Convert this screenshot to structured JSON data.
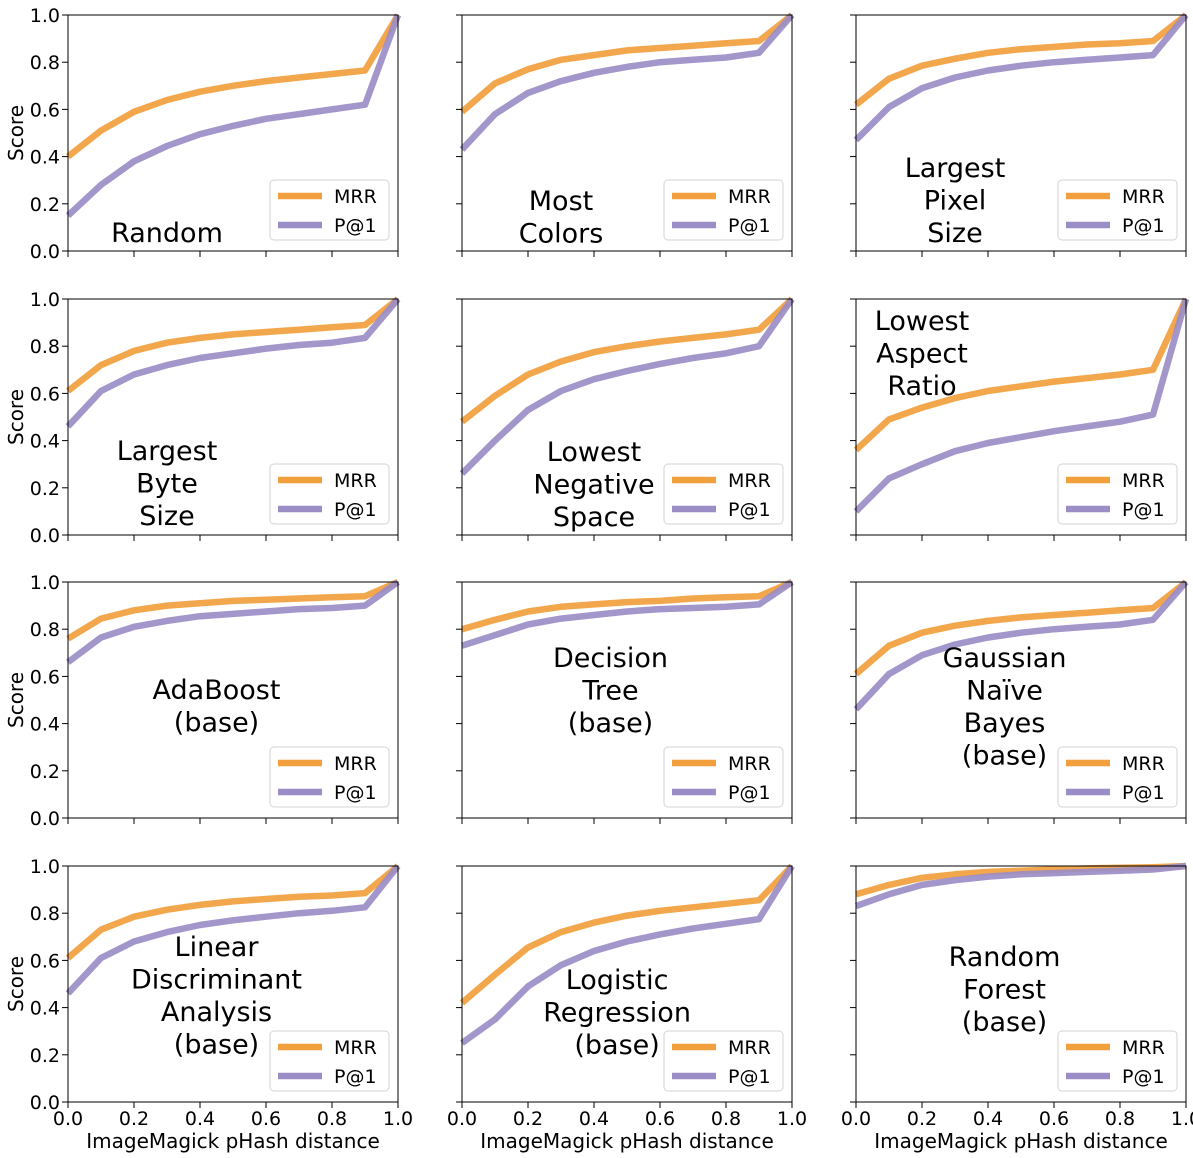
{
  "colors": {
    "mrr": "#f2a03d",
    "p1": "#9b8dc6",
    "mrr_dark": "#e08a2e",
    "p1_dark": "#8a7fba"
  },
  "shared": {
    "xlabel": "ImageMagick pHash distance",
    "ylabel": "Score",
    "xlim": [
      0.0,
      1.0
    ],
    "ylim": [
      0.0,
      1.0
    ],
    "xticks": [
      "0.0",
      "0.2",
      "0.4",
      "0.6",
      "0.8",
      "1.0"
    ],
    "yticks": [
      "0.0",
      "0.2",
      "0.4",
      "0.6",
      "0.8",
      "1.0"
    ],
    "legend": [
      "MRR",
      "P@1"
    ],
    "legend_position": "lower-right",
    "grid": false
  },
  "chart_data": [
    {
      "type": "line",
      "title_lines": [
        "Random"
      ],
      "x": [
        0.0,
        0.1,
        0.2,
        0.3,
        0.4,
        0.5,
        0.6,
        0.7,
        0.8,
        0.9,
        1.0
      ],
      "series": [
        {
          "name": "MRR",
          "values": [
            0.4,
            0.51,
            0.59,
            0.64,
            0.675,
            0.7,
            0.72,
            0.735,
            0.75,
            0.765,
            1.0
          ]
        },
        {
          "name": "P@1",
          "values": [
            0.15,
            0.28,
            0.38,
            0.445,
            0.495,
            0.53,
            0.56,
            0.58,
            0.6,
            0.62,
            1.0
          ]
        }
      ]
    },
    {
      "type": "line",
      "title_lines": [
        "Most",
        "Colors"
      ],
      "x": [
        0.0,
        0.1,
        0.2,
        0.3,
        0.4,
        0.5,
        0.6,
        0.7,
        0.8,
        0.9,
        1.0
      ],
      "series": [
        {
          "name": "MRR",
          "values": [
            0.59,
            0.71,
            0.77,
            0.81,
            0.83,
            0.85,
            0.86,
            0.87,
            0.88,
            0.89,
            1.0
          ]
        },
        {
          "name": "P@1",
          "values": [
            0.43,
            0.58,
            0.67,
            0.72,
            0.755,
            0.78,
            0.8,
            0.81,
            0.82,
            0.84,
            1.0
          ]
        }
      ]
    },
    {
      "type": "line",
      "title_lines": [
        "Largest",
        "Pixel",
        "Size"
      ],
      "x": [
        0.0,
        0.1,
        0.2,
        0.3,
        0.4,
        0.5,
        0.6,
        0.7,
        0.8,
        0.9,
        1.0
      ],
      "series": [
        {
          "name": "MRR",
          "values": [
            0.62,
            0.73,
            0.785,
            0.815,
            0.84,
            0.855,
            0.865,
            0.875,
            0.88,
            0.89,
            1.0
          ]
        },
        {
          "name": "P@1",
          "values": [
            0.47,
            0.61,
            0.69,
            0.735,
            0.765,
            0.785,
            0.8,
            0.81,
            0.82,
            0.83,
            1.0
          ]
        }
      ]
    },
    {
      "type": "line",
      "title_lines": [
        "Largest",
        "Byte",
        "Size"
      ],
      "x": [
        0.0,
        0.1,
        0.2,
        0.3,
        0.4,
        0.5,
        0.6,
        0.7,
        0.8,
        0.9,
        1.0
      ],
      "series": [
        {
          "name": "MRR",
          "values": [
            0.61,
            0.72,
            0.78,
            0.815,
            0.835,
            0.85,
            0.86,
            0.87,
            0.88,
            0.89,
            1.0
          ]
        },
        {
          "name": "P@1",
          "values": [
            0.46,
            0.61,
            0.68,
            0.72,
            0.75,
            0.77,
            0.79,
            0.805,
            0.815,
            0.835,
            1.0
          ]
        }
      ]
    },
    {
      "type": "line",
      "title_lines": [
        "Lowest",
        "Negative",
        "Space"
      ],
      "x": [
        0.0,
        0.1,
        0.2,
        0.3,
        0.4,
        0.5,
        0.6,
        0.7,
        0.8,
        0.9,
        1.0
      ],
      "series": [
        {
          "name": "MRR",
          "values": [
            0.48,
            0.59,
            0.68,
            0.735,
            0.775,
            0.8,
            0.82,
            0.835,
            0.85,
            0.87,
            1.0
          ]
        },
        {
          "name": "P@1",
          "values": [
            0.26,
            0.4,
            0.53,
            0.61,
            0.66,
            0.695,
            0.725,
            0.75,
            0.77,
            0.8,
            1.0
          ]
        }
      ]
    },
    {
      "type": "line",
      "title_lines": [
        "Lowest",
        "Aspect",
        "Ratio"
      ],
      "x": [
        0.0,
        0.1,
        0.2,
        0.3,
        0.4,
        0.5,
        0.6,
        0.7,
        0.8,
        0.9,
        1.0
      ],
      "series": [
        {
          "name": "MRR",
          "values": [
            0.36,
            0.49,
            0.54,
            0.58,
            0.61,
            0.63,
            0.65,
            0.665,
            0.68,
            0.7,
            1.0
          ]
        },
        {
          "name": "P@1",
          "values": [
            0.1,
            0.24,
            0.3,
            0.355,
            0.39,
            0.415,
            0.44,
            0.46,
            0.48,
            0.51,
            1.0
          ]
        }
      ]
    },
    {
      "type": "line",
      "title_lines": [
        "AdaBoost",
        "(base)"
      ],
      "x": [
        0.0,
        0.1,
        0.2,
        0.3,
        0.4,
        0.5,
        0.6,
        0.7,
        0.8,
        0.9,
        1.0
      ],
      "series": [
        {
          "name": "MRR",
          "values": [
            0.76,
            0.845,
            0.88,
            0.9,
            0.91,
            0.92,
            0.925,
            0.93,
            0.935,
            0.94,
            1.0
          ]
        },
        {
          "name": "P@1",
          "values": [
            0.66,
            0.765,
            0.81,
            0.835,
            0.855,
            0.865,
            0.875,
            0.885,
            0.89,
            0.9,
            1.0
          ]
        }
      ]
    },
    {
      "type": "line",
      "title_lines": [
        "Decision",
        "Tree",
        "(base)"
      ],
      "x": [
        0.0,
        0.1,
        0.2,
        0.3,
        0.4,
        0.5,
        0.6,
        0.7,
        0.8,
        0.9,
        1.0
      ],
      "series": [
        {
          "name": "MRR",
          "values": [
            0.8,
            0.84,
            0.875,
            0.895,
            0.905,
            0.915,
            0.92,
            0.93,
            0.935,
            0.94,
            1.0
          ]
        },
        {
          "name": "P@1",
          "values": [
            0.73,
            0.775,
            0.82,
            0.845,
            0.86,
            0.875,
            0.885,
            0.89,
            0.895,
            0.905,
            1.0
          ]
        }
      ]
    },
    {
      "type": "line",
      "title_lines": [
        "Gaussian",
        "Naïve",
        "Bayes",
        "(base)"
      ],
      "x": [
        0.0,
        0.1,
        0.2,
        0.3,
        0.4,
        0.5,
        0.6,
        0.7,
        0.8,
        0.9,
        1.0
      ],
      "series": [
        {
          "name": "MRR",
          "values": [
            0.61,
            0.73,
            0.785,
            0.815,
            0.835,
            0.85,
            0.86,
            0.87,
            0.88,
            0.89,
            1.0
          ]
        },
        {
          "name": "P@1",
          "values": [
            0.46,
            0.61,
            0.69,
            0.735,
            0.765,
            0.785,
            0.8,
            0.81,
            0.82,
            0.84,
            1.0
          ]
        }
      ]
    },
    {
      "type": "line",
      "title_lines": [
        "Linear",
        "Discriminant",
        "Analysis",
        "(base)"
      ],
      "x": [
        0.0,
        0.1,
        0.2,
        0.3,
        0.4,
        0.5,
        0.6,
        0.7,
        0.8,
        0.9,
        1.0
      ],
      "series": [
        {
          "name": "MRR",
          "values": [
            0.61,
            0.73,
            0.785,
            0.815,
            0.835,
            0.85,
            0.86,
            0.87,
            0.875,
            0.885,
            1.0
          ]
        },
        {
          "name": "P@1",
          "values": [
            0.46,
            0.61,
            0.68,
            0.72,
            0.75,
            0.77,
            0.785,
            0.8,
            0.81,
            0.825,
            1.0
          ]
        }
      ]
    },
    {
      "type": "line",
      "title_lines": [
        "Logistic",
        "Regression",
        "(base)"
      ],
      "x": [
        0.0,
        0.1,
        0.2,
        0.3,
        0.4,
        0.5,
        0.6,
        0.7,
        0.8,
        0.9,
        1.0
      ],
      "series": [
        {
          "name": "MRR",
          "values": [
            0.42,
            0.54,
            0.655,
            0.72,
            0.76,
            0.79,
            0.81,
            0.825,
            0.84,
            0.855,
            1.0
          ]
        },
        {
          "name": "P@1",
          "values": [
            0.25,
            0.35,
            0.49,
            0.58,
            0.64,
            0.68,
            0.71,
            0.735,
            0.755,
            0.775,
            1.0
          ]
        }
      ]
    },
    {
      "type": "line",
      "title_lines": [
        "Random",
        "Forest",
        "(base)"
      ],
      "x": [
        0.0,
        0.1,
        0.2,
        0.3,
        0.4,
        0.5,
        0.6,
        0.7,
        0.8,
        0.9,
        1.0
      ],
      "series": [
        {
          "name": "MRR",
          "values": [
            0.88,
            0.92,
            0.95,
            0.965,
            0.975,
            0.98,
            0.985,
            0.99,
            0.993,
            0.995,
            1.0
          ]
        },
        {
          "name": "P@1",
          "values": [
            0.83,
            0.88,
            0.92,
            0.94,
            0.955,
            0.965,
            0.97,
            0.975,
            0.98,
            0.985,
            1.0
          ]
        }
      ]
    }
  ]
}
